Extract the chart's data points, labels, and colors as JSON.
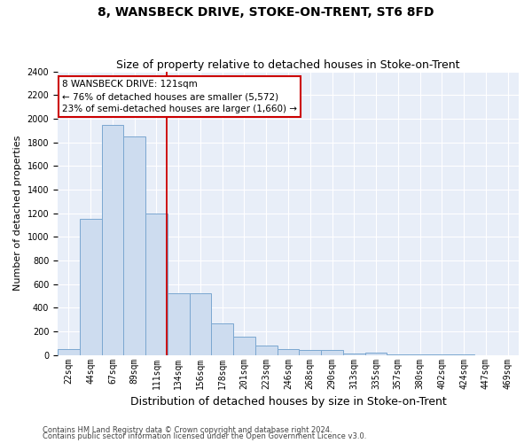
{
  "title": "8, WANSBECK DRIVE, STOKE-ON-TRENT, ST6 8FD",
  "subtitle": "Size of property relative to detached houses in Stoke-on-Trent",
  "xlabel": "Distribution of detached houses by size in Stoke-on-Trent",
  "ylabel": "Number of detached properties",
  "categories": [
    "22sqm",
    "44sqm",
    "67sqm",
    "89sqm",
    "111sqm",
    "134sqm",
    "156sqm",
    "178sqm",
    "201sqm",
    "223sqm",
    "246sqm",
    "268sqm",
    "290sqm",
    "313sqm",
    "335sqm",
    "357sqm",
    "380sqm",
    "402sqm",
    "424sqm",
    "447sqm",
    "469sqm"
  ],
  "values": [
    50,
    1150,
    1950,
    1850,
    1200,
    520,
    520,
    270,
    155,
    80,
    50,
    45,
    40,
    12,
    18,
    8,
    5,
    3,
    2,
    1,
    1
  ],
  "bar_color": "#cddcef",
  "bar_edge_color": "#7ba7d0",
  "vline_color": "#cc0000",
  "vline_position": 4.45,
  "annotation_text": "8 WANSBECK DRIVE: 121sqm\n← 76% of detached houses are smaller (5,572)\n23% of semi-detached houses are larger (1,660) →",
  "annotation_box_facecolor": "#ffffff",
  "annotation_box_edgecolor": "#cc0000",
  "ylim": [
    0,
    2400
  ],
  "yticks": [
    0,
    200,
    400,
    600,
    800,
    1000,
    1200,
    1400,
    1600,
    1800,
    2000,
    2200,
    2400
  ],
  "footnote1": "Contains HM Land Registry data © Crown copyright and database right 2024.",
  "footnote2": "Contains public sector information licensed under the Open Government Licence v3.0.",
  "bg_color": "#e8eef8",
  "fig_bg_color": "#ffffff",
  "title_fontsize": 10,
  "subtitle_fontsize": 9,
  "ylabel_fontsize": 8,
  "xlabel_fontsize": 9,
  "tick_fontsize": 7,
  "ytick_fontsize": 7,
  "annotation_fontsize": 7.5,
  "footnote_fontsize": 6
}
